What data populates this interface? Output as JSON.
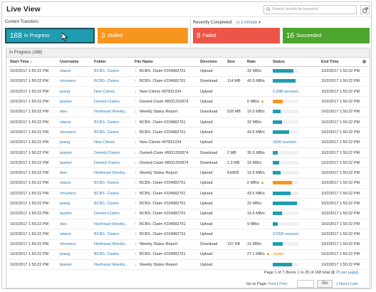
{
  "app": {
    "title": "Live View"
  },
  "search": {
    "placeholder": "Search results by keyword"
  },
  "current": {
    "label": "Current Transfers:"
  },
  "recent": {
    "label": "Recently Completed:",
    "interval": "1 minute"
  },
  "tiles": [
    {
      "count": "168",
      "label": "In Progress",
      "color": "#1f9cb0"
    },
    {
      "count": "3",
      "label": "Stalled",
      "color": "#f7961d"
    },
    {
      "count": "8",
      "label": "Failed",
      "color": "#ec5547"
    },
    {
      "count": "16",
      "label": "Succeeded",
      "color": "#4ca62e"
    }
  ],
  "panel": {
    "title": "In Progress (168)"
  },
  "columns": [
    "Start Time",
    "Username",
    "Folder",
    "File Name",
    "Direction",
    "Size",
    "Rate",
    "Status",
    "End Time"
  ],
  "colors": {
    "blue": "#1f9cb0",
    "orange": "#f7961d",
    "link": "#2e7cb8"
  },
  "rows": [
    {
      "start": "10/2/2017 1:50:22 PM",
      "user": "sdavis",
      "folder": "BCBS- Claims",
      "arrow": "up",
      "file": "BCBS- Claim #234982791",
      "dir": "Upload",
      "size": "",
      "rate": "32 MB/s",
      "status_text": "",
      "status_color": "blue",
      "progress": 0.8,
      "warn": false,
      "end": "10/2/2017 1:50:22 PM"
    },
    {
      "start": "10/2/2017 1:50:22 PM",
      "user": "mhunters",
      "folder": "BCBS- Claims",
      "arrow": "up",
      "file": "BCBS- Claim #234982791",
      "dir": "Download",
      "size": "114 MB",
      "rate": "43.5 MB/s",
      "status_text": "",
      "status_color": "blue",
      "progress": 0.9,
      "warn": false,
      "end": "10/2/2017 1:50:22 PM"
    },
    {
      "start": "10/2/2017 1:50:22 PM",
      "user": "jwang",
      "folder": "New Clients",
      "arrow": "down",
      "file": "New Clients #87831234",
      "dir": "Upload",
      "size": "",
      "rate": "",
      "status_text": "5.2MB received...",
      "status_color": "blue",
      "progress": 0,
      "warn": false,
      "end": "10/2/2017 1:50:22 PM"
    },
    {
      "start": "10/2/2017 1:50:22 PM",
      "user": "tparker",
      "folder": "Denied-Claims",
      "arrow": "up-orange",
      "file": "Denied-Claim #8931292874",
      "dir": "Upload",
      "size": "",
      "rate": "0 MB/s",
      "status_text": "",
      "status_color": "orange",
      "progress": 0.4,
      "warn": true,
      "end": "10/2/2017 1:50:22 PM"
    },
    {
      "start": "10/2/2017 1:50:22 PM",
      "user": "dwu",
      "folder": "Northeast Weekly...",
      "arrow": "down",
      "file": "Weekly Status Report",
      "dir": "Download",
      "size": "528 MB",
      "rate": "16.5 MB/s",
      "status_text": "",
      "status_color": "blue",
      "progress": 0.3,
      "warn": false,
      "end": "10/2/2017 1:50:22 PM"
    },
    {
      "start": "10/2/2017 1:50:22 PM",
      "user": "sdavis",
      "folder": "BCBS- Claims",
      "arrow": "up",
      "file": "BCBS- Claim #234982791",
      "dir": "Upload",
      "size": "",
      "rate": "32 MB/s",
      "status_text": "",
      "status_color": "blue",
      "progress": 0.35,
      "warn": false,
      "end": "10/2/2017 1:50:22 PM"
    },
    {
      "start": "10/2/2017 1:50:22 PM",
      "user": "mhunters",
      "folder": "BCBS- Claims",
      "arrow": "up",
      "file": "BCBS- Claim #234982791",
      "dir": "Upload",
      "size": "",
      "rate": "43.5 MB/s",
      "status_text": "",
      "status_color": "blue",
      "progress": 0.65,
      "warn": false,
      "end": "10/2/2017 1:50:22 PM"
    },
    {
      "start": "10/2/2017 1:50:22 PM",
      "user": "jwang",
      "folder": "New Clients",
      "arrow": "down",
      "file": "New Clients #87831234",
      "dir": "Upload",
      "size": "",
      "rate": "",
      "status_text": "326B received...",
      "status_color": "blue",
      "progress": 0,
      "warn": false,
      "end": "10/2/2017 1:50:22 PM"
    },
    {
      "start": "10/2/2017 1:50:22 PM",
      "user": "tparker",
      "folder": "Denied-Claims",
      "arrow": "down",
      "file": "Denied-Claim #8931292874",
      "dir": "Download",
      "size": "2 MB",
      "rate": "35.5 MB/s",
      "status_text": "",
      "status_color": "blue",
      "progress": 0.2,
      "warn": false,
      "end": "10/2/2017 1:50:22 PM"
    },
    {
      "start": "10/2/2017 1:50:22 PM",
      "user": "tparker",
      "folder": "Denied-Claims",
      "arrow": "down",
      "file": "Denied-Claim #8931292874",
      "dir": "Download",
      "size": "2.3 MB",
      "rate": "15 MB/s",
      "status_text": "",
      "status_color": "blue",
      "progress": 0.25,
      "warn": false,
      "end": "10/2/2017 1:50:22 PM"
    },
    {
      "start": "10/2/2017 1:50:22 PM",
      "user": "dwu",
      "folder": "Northeast Weekly...",
      "arrow": "down",
      "file": "Weekly Status Report",
      "dir": "Upload",
      "size": "543KB",
      "rate": "16.5 MB/s",
      "status_text": "",
      "status_color": "blue",
      "progress": 0.3,
      "warn": false,
      "end": "10/2/2017 1:50:22 PM"
    },
    {
      "start": "10/2/2017 1:50:22 PM",
      "user": "sdavis",
      "folder": "BCBS- Claims",
      "arrow": "up-orange",
      "file": "BCBS- Claim #234982791",
      "dir": "Upload",
      "size": "",
      "rate": "0 MB/s",
      "status_text": "",
      "status_color": "orange",
      "progress": 0.75,
      "warn": true,
      "end": "10/2/2017 1:50:22 PM"
    },
    {
      "start": "10/2/2017 1:50:22 PM",
      "user": "mhunters",
      "folder": "BCBS- Claims",
      "arrow": "up",
      "file": "BCBS- Claim #234982791",
      "dir": "Upload",
      "size": "",
      "rate": "43.5 MB/s",
      "status_text": "",
      "status_color": "blue",
      "progress": 0.7,
      "warn": false,
      "end": "10/2/2017 1:50:22 PM"
    },
    {
      "start": "10/2/2017 1:50:22 PM",
      "user": "jwang",
      "folder": "BCBS- Claims",
      "arrow": "up",
      "file": "BCBS- Claim #234982791",
      "dir": "Upload",
      "size": "",
      "rate": "32 MB/s",
      "status_text": "",
      "status_color": "blue",
      "progress": 0.95,
      "warn": false,
      "end": "10/2/2017 1:50:22 PM"
    },
    {
      "start": "10/2/2017 1:50:22 PM",
      "user": "tparker",
      "folder": "Denied-Claims",
      "arrow": "up",
      "file": "BCBS- Claim #234982791",
      "dir": "Upload",
      "size": "",
      "rate": "16.5 MB/s",
      "status_text": "",
      "status_color": "blue",
      "progress": 0.35,
      "warn": false,
      "end": "10/2/2017 1:50:22 PM"
    },
    {
      "start": "10/2/2017 1:50:22 PM",
      "user": "dwu",
      "folder": "Northeast Weekly...",
      "arrow": "up",
      "file": "BCBS- Claim #234982791",
      "dir": "Upload",
      "size": "",
      "rate": "9 MB/s",
      "status_text": "",
      "status_color": "blue",
      "progress": 0.2,
      "warn": false,
      "end": "10/2/2017 1:50:22 PM"
    },
    {
      "start": "10/2/2017 1:50:22 PM",
      "user": "sdavis",
      "folder": "BCBS- Claims",
      "arrow": "up",
      "file": "BCBS- Claim #234982791",
      "dir": "Upload",
      "size": "",
      "rate": "",
      "status_text": "572KB received...",
      "status_color": "blue",
      "progress": 0,
      "warn": false,
      "end": "10/2/2017 1:50:22 PM"
    },
    {
      "start": "10/2/2017 1:50:22 PM",
      "user": "mhunters",
      "folder": "Northeast Weekly...",
      "arrow": "down",
      "file": "Weekly Status Report",
      "dir": "Download",
      "size": "137 KB",
      "rate": "10 MB/s",
      "status_text": "",
      "status_color": "blue",
      "progress": 0.4,
      "warn": false,
      "end": "10/2/2017 1:50:22 PM"
    },
    {
      "start": "10/2/2017 1:50:22 PM",
      "user": "jwang",
      "folder": "BCBS- Claims",
      "arrow": "up",
      "file": "BCBS- Claim #234982791",
      "dir": "Upload",
      "size": "",
      "rate": "27.1 MB/s",
      "status_text": "Stalled",
      "status_color": "orange",
      "progress": 0,
      "warn": true,
      "end": "10/2/2017 1:50:22 PM"
    },
    {
      "start": "10/2/2017 1:50:22 PM",
      "user": "tparker",
      "folder": "Northeast Weekly...",
      "arrow": "down",
      "file": "Weekly Status Report",
      "dir": "Upload",
      "size": "",
      "rate": "",
      "status_text": "",
      "status_color": "blue",
      "progress": 0.75,
      "warn": false,
      "end": "10/2/2017 1:50:22 PM"
    }
  ],
  "pager": {
    "page_text": "Page 1 of 7",
    "items_text": "(Items 1 to 25 of 168 total @",
    "per_page_text": "25 per page",
    "close_paren": ")",
    "goto_label": "Go to Page:",
    "first": "First",
    "prev": "Prev",
    "go": "Go",
    "next": "Next",
    "last": "Last",
    "sep": "|"
  }
}
